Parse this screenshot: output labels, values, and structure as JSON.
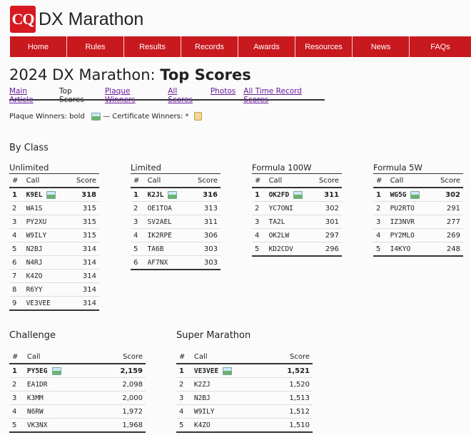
{
  "site": {
    "logo": "CQ",
    "title": "DX Marathon"
  },
  "nav": [
    "Home",
    "Rules",
    "Results",
    "Records",
    "Awards",
    "Resources",
    "News",
    "FAQs"
  ],
  "page": {
    "title_prefix": "2024 DX Marathon: ",
    "title_strong": "Top Scores",
    "tabs": [
      {
        "label": "Main Article",
        "current": false
      },
      {
        "label": "Top Scores",
        "current": true
      },
      {
        "label": "Plaque Winners",
        "current": false
      },
      {
        "label": "All Scores",
        "current": false
      },
      {
        "label": "Photos",
        "current": false
      },
      {
        "label": "All Time Record Scores",
        "current": false
      }
    ],
    "legend": {
      "plaque": "Plaque Winners: bold",
      "sep": " — Certificate Winners: * "
    }
  },
  "by_class": {
    "heading": "By Class",
    "classes": [
      {
        "name": "Unlimited",
        "rows": [
          {
            "rank": "1",
            "call": "K9EL",
            "score": "318",
            "plaque": true
          },
          {
            "rank": "2",
            "call": "WA1S",
            "score": "315"
          },
          {
            "rank": "3",
            "call": "PY2XU",
            "score": "315"
          },
          {
            "rank": "4",
            "call": "W9ILY",
            "score": "315"
          },
          {
            "rank": "5",
            "call": "N2BJ",
            "score": "314"
          },
          {
            "rank": "6",
            "call": "N4RJ",
            "score": "314"
          },
          {
            "rank": "7",
            "call": "K4ZO",
            "score": "314"
          },
          {
            "rank": "8",
            "call": "R6YY",
            "score": "314"
          },
          {
            "rank": "9",
            "call": "VE3VEE",
            "score": "314"
          }
        ]
      },
      {
        "name": "Limited",
        "rows": [
          {
            "rank": "1",
            "call": "K2JL",
            "score": "316",
            "plaque": true
          },
          {
            "rank": "2",
            "call": "OE1TOA",
            "score": "313"
          },
          {
            "rank": "3",
            "call": "SV2AEL",
            "score": "311"
          },
          {
            "rank": "4",
            "call": "IK2RPE",
            "score": "306"
          },
          {
            "rank": "5",
            "call": "TA6B",
            "score": "303"
          },
          {
            "rank": "6",
            "call": "AF7NX",
            "score": "303"
          }
        ]
      },
      {
        "name": "Formula 100W",
        "rows": [
          {
            "rank": "1",
            "call": "OK2FD",
            "score": "311",
            "plaque": true
          },
          {
            "rank": "2",
            "call": "YC7ONI",
            "score": "302"
          },
          {
            "rank": "3",
            "call": "TA2L",
            "score": "301"
          },
          {
            "rank": "4",
            "call": "OK2LW",
            "score": "297"
          },
          {
            "rank": "5",
            "call": "KD2CDV",
            "score": "296"
          }
        ]
      },
      {
        "name": "Formula 5W",
        "rows": [
          {
            "rank": "1",
            "call": "WG5G",
            "score": "302",
            "plaque": true
          },
          {
            "rank": "2",
            "call": "PU2RTO",
            "score": "291"
          },
          {
            "rank": "3",
            "call": "IZ3NVR",
            "score": "277"
          },
          {
            "rank": "4",
            "call": "PY2MLO",
            "score": "269"
          },
          {
            "rank": "5",
            "call": "I4KYO",
            "score": "248"
          }
        ]
      }
    ]
  },
  "challenge": {
    "heading": "Challenge",
    "rows": [
      {
        "rank": "1",
        "call": "PY5EG",
        "score": "2,159",
        "plaque": true
      },
      {
        "rank": "2",
        "call": "EA1DR",
        "score": "2,098"
      },
      {
        "rank": "3",
        "call": "K3MM",
        "score": "2,000"
      },
      {
        "rank": "4",
        "call": "N6RW",
        "score": "1,972"
      },
      {
        "rank": "5",
        "call": "VK3NX",
        "score": "1,968"
      }
    ]
  },
  "super_marathon": {
    "heading": "Super Marathon",
    "rows": [
      {
        "rank": "1",
        "call": "VE3VEE",
        "score": "1,521",
        "plaque": true
      },
      {
        "rank": "2",
        "call": "K2ZJ",
        "score": "1,520"
      },
      {
        "rank": "3",
        "call": "N2BJ",
        "score": "1,513"
      },
      {
        "rank": "4",
        "call": "W9ILY",
        "score": "1,512"
      },
      {
        "rank": "5",
        "call": "K4ZO",
        "score": "1,510"
      }
    ]
  },
  "table_headers": {
    "rank": "#",
    "call": "Call",
    "score": "Score"
  }
}
